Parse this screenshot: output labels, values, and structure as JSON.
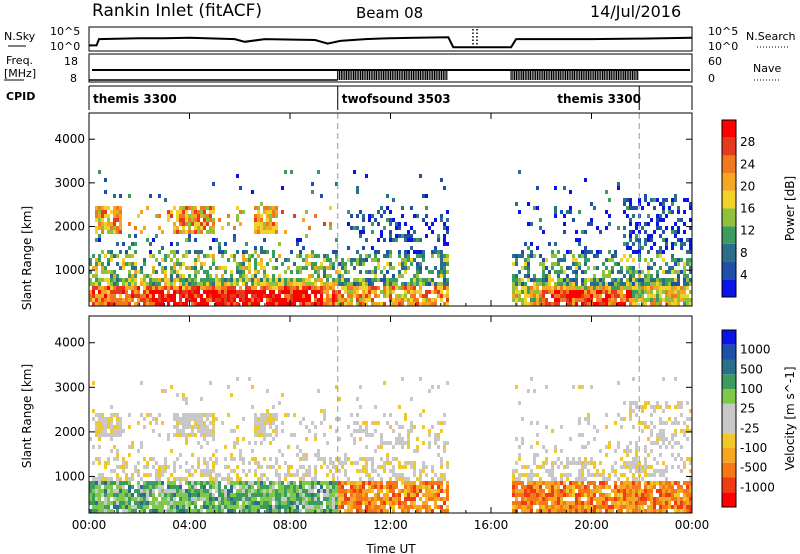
{
  "header": {
    "station": "Rankin Inlet (fitACF)",
    "beam": "Beam 08",
    "date": "14/Jul/2016"
  },
  "noise_panel": {
    "left_label": "N.Sky",
    "right_label": "N.Search",
    "ticks_top": "10^5",
    "ticks_bottom": "10^0"
  },
  "freq_panel": {
    "left_label_1": "Freq.",
    "left_label_2": "[MHz]",
    "right_label": "Nave",
    "left_ticks": [
      "18",
      "8"
    ],
    "right_ticks": [
      "60",
      "0"
    ]
  },
  "cpid_panel": {
    "label": "CPID",
    "modes": [
      {
        "name": "themis 3300",
        "start": 0.0,
        "end": 9.9
      },
      {
        "name": "twofsound 3503",
        "start": 9.9,
        "end": 21.9
      },
      {
        "name": "themis 3300",
        "start": 21.9,
        "end": 24.0
      }
    ]
  },
  "colors": {
    "power": [
      "#0a14e6",
      "#1f4fa8",
      "#2a6e8a",
      "#3c9c5e",
      "#8fc23a",
      "#f0d22a",
      "#f5a623",
      "#f0781e",
      "#e63a1e",
      "#ff0000"
    ],
    "velocity": [
      "#ff0000",
      "#f03c14",
      "#f57814",
      "#f5a623",
      "#f0c828",
      "#c8c8c8",
      "#c8c8c8",
      "#7ec84a",
      "#3c9c5e",
      "#2a6e8a",
      "#1f4fa8",
      "#0a14e6"
    ]
  },
  "chart_data": [
    {
      "type": "line",
      "title": "N.Sky / N.Search",
      "x_range": [
        0,
        24
      ],
      "y_ticks": [
        "10^0",
        "10^5"
      ],
      "series": [
        {
          "name": "N.Sky",
          "x": [
            0,
            0.3,
            0.4,
            2,
            3,
            4,
            5.8,
            6.2,
            7,
            9,
            9.5,
            10,
            11,
            12,
            13,
            14.3,
            14.5,
            16.8,
            17,
            20,
            22,
            24
          ],
          "y": [
            0.2,
            0.2,
            0.55,
            0.6,
            0.6,
            0.62,
            0.55,
            0.4,
            0.55,
            0.5,
            0.3,
            0.45,
            0.55,
            0.6,
            0.62,
            0.65,
            0.1,
            0.1,
            0.55,
            0.55,
            0.58,
            0.62
          ]
        }
      ]
    },
    {
      "type": "line",
      "title": "Freq / Nave",
      "x_range": [
        0,
        24
      ],
      "series": [
        {
          "name": "Freq",
          "x": [
            0,
            24
          ],
          "y": [
            11,
            11
          ]
        },
        {
          "name": "Nave",
          "x": [
            0,
            9.9,
            9.9,
            14.3,
            16.8,
            16.8,
            21.9,
            24
          ],
          "y": [
            0.2,
            0.2,
            0.7,
            0.7,
            0.0,
            0.7,
            0.7,
            0.2
          ]
        }
      ]
    },
    {
      "type": "heatmap",
      "title": "Power",
      "xlabel": "Time UT",
      "ylabel": "Slant Range [km]",
      "x_ticks": [
        "00:00",
        "04:00",
        "08:00",
        "12:00",
        "16:00",
        "20:00",
        "00:00"
      ],
      "y_ticks": [
        "1000",
        "2000",
        "3000",
        "4000"
      ],
      "y_range": [
        180,
        4600
      ],
      "colorbar_label": "Power [dB]",
      "colorbar_ticks": [
        "4",
        "8",
        "12",
        "16",
        "20",
        "24",
        "28"
      ],
      "gaps": [
        [
          14.3,
          16.8
        ]
      ]
    },
    {
      "type": "heatmap",
      "title": "Velocity",
      "xlabel": "Time UT",
      "ylabel": "Slant Range [km]",
      "x_ticks": [
        "00:00",
        "04:00",
        "08:00",
        "12:00",
        "16:00",
        "20:00",
        "00:00"
      ],
      "y_ticks": [
        "1000",
        "2000",
        "3000",
        "4000"
      ],
      "y_range": [
        180,
        4600
      ],
      "colorbar_label": "Velocity [m s^-1]",
      "colorbar_ticks": [
        "-1000",
        "-500",
        "-100",
        "-25",
        "25",
        "100",
        "500",
        "1000"
      ],
      "gaps": [
        [
          14.3,
          16.8
        ]
      ]
    }
  ],
  "axis": {
    "xlabel": "Time UT",
    "ylabel": "Slant Range [km]"
  }
}
